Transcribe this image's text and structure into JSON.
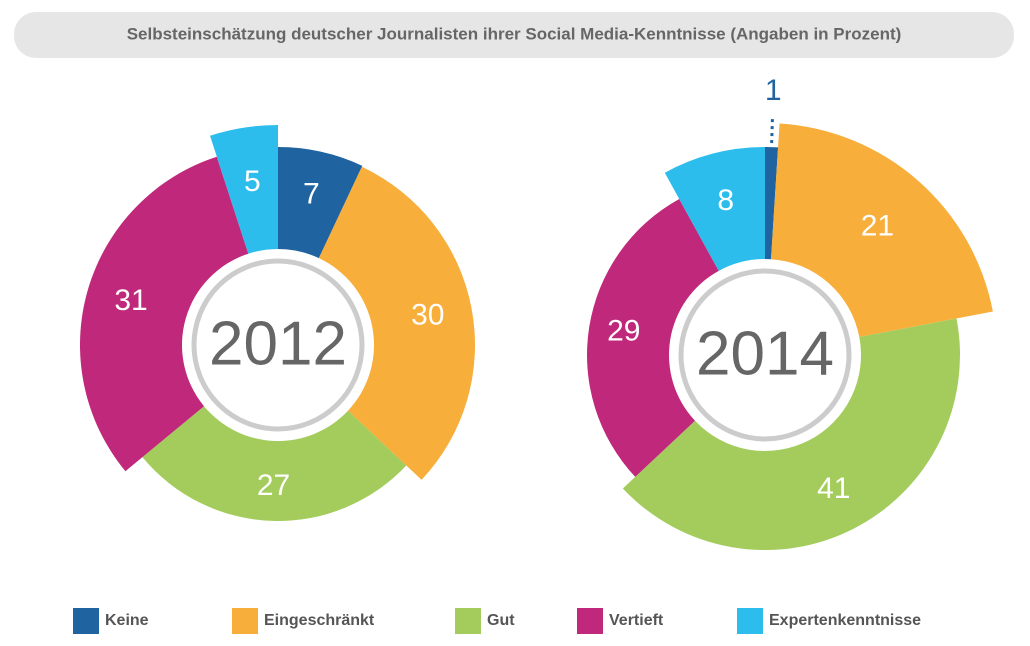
{
  "title": "Selbsteinschätzung deutscher Journalisten ihrer Social Media-Kenntnisse (Angaben in Prozent)",
  "chart_data": [
    {
      "type": "pie",
      "center_label": "2012",
      "categories": [
        "Keine",
        "Eingeschränkt",
        "Gut",
        "Vertieft",
        "Expertenkenntnisse"
      ],
      "values": [
        7,
        30,
        27,
        31,
        5
      ],
      "colors": [
        "#1f63a0",
        "#f7ae3b",
        "#a3cc5c",
        "#c0297b",
        "#2dbdec"
      ]
    },
    {
      "type": "pie",
      "center_label": "2014",
      "categories": [
        "Keine",
        "Eingeschränkt",
        "Gut",
        "Vertieft",
        "Expertenkenntnisse"
      ],
      "values": [
        1,
        21,
        41,
        29,
        8
      ],
      "colors": [
        "#1f63a0",
        "#f7ae3b",
        "#a3cc5c",
        "#c0297b",
        "#2dbdec"
      ]
    }
  ]
}
